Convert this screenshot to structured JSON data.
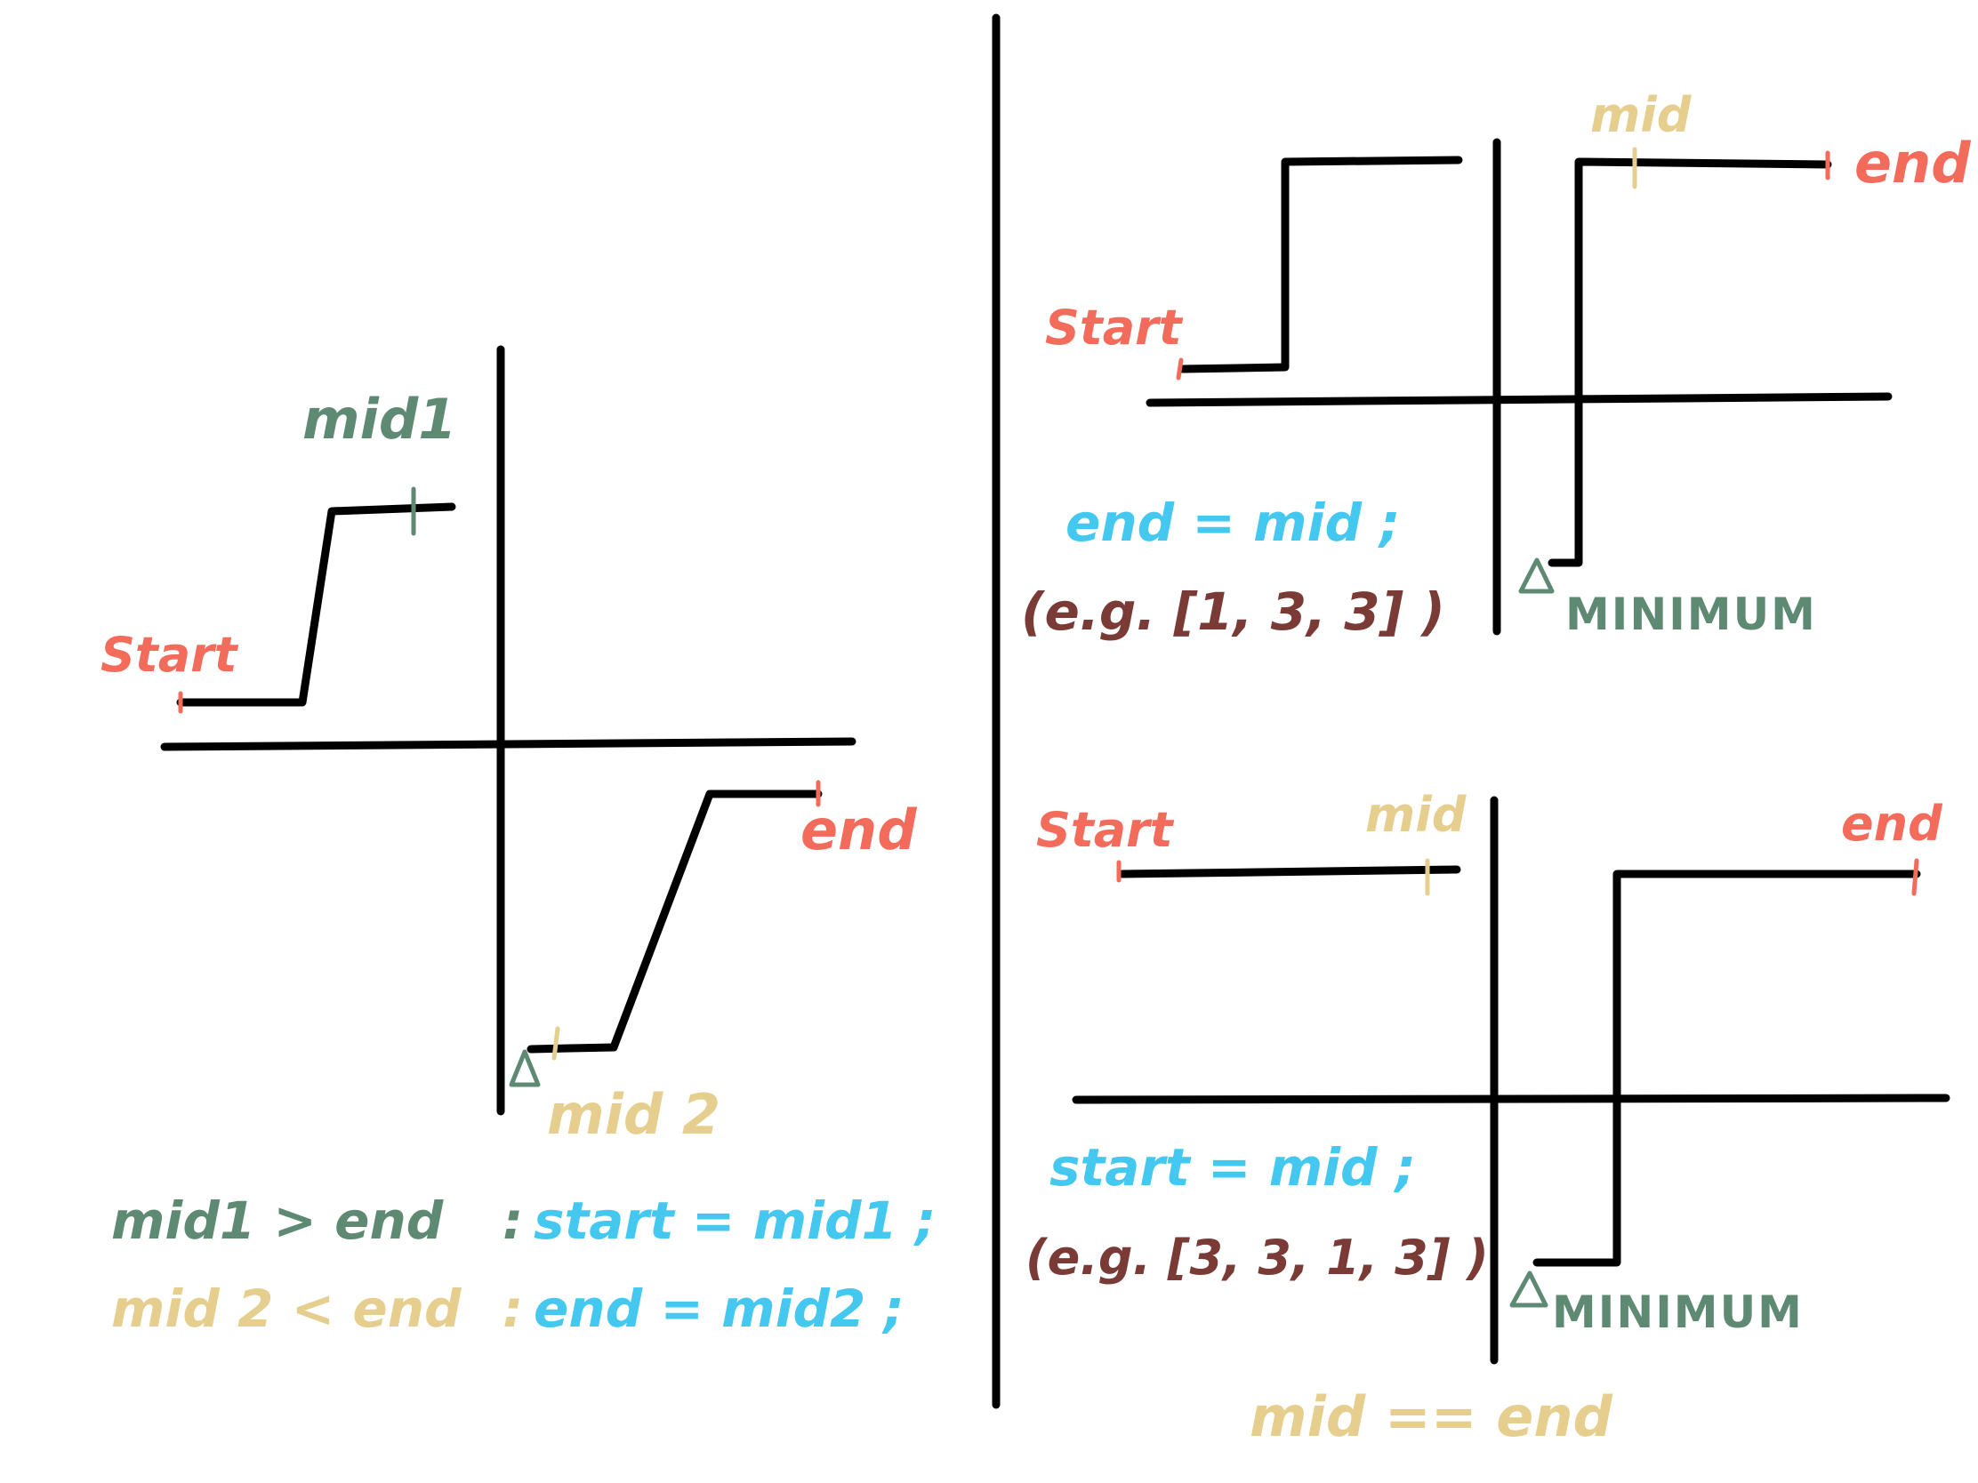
{
  "colors": {
    "start": "#f26b5b",
    "end": "#f26b5b",
    "mid": "#e6cf8e",
    "mid1": "#5e8a74",
    "minimum": "#5e8a74",
    "code": "#45c8ef",
    "example": "#7a3b36",
    "line": "#000000"
  },
  "left_panel": {
    "label_start": "Start",
    "label_mid1": "mid1",
    "label_end": "end",
    "label_mid2": "mid 2",
    "rule1_cond": "mid1 > end",
    "rule1_colon": ":",
    "rule1_action": "start = mid1 ;",
    "rule2_cond": "mid 2 < end",
    "rule2_colon": ":",
    "rule2_action": "end = mid2 ;"
  },
  "top_right_panel": {
    "label_start": "Start",
    "label_mid": "mid",
    "label_end": "end",
    "label_minimum": "MINIMUM",
    "rule": "end = mid ;",
    "example": "(e.g. [1, 3, 3] )"
  },
  "bottom_right_panel": {
    "label_start": "Start",
    "label_mid": "mid",
    "label_end": "end",
    "label_minimum": "MINIMUM",
    "rule": "start = mid ;",
    "example": "(e.g. [3, 3, 1, 3] )",
    "footer": "mid == end"
  }
}
